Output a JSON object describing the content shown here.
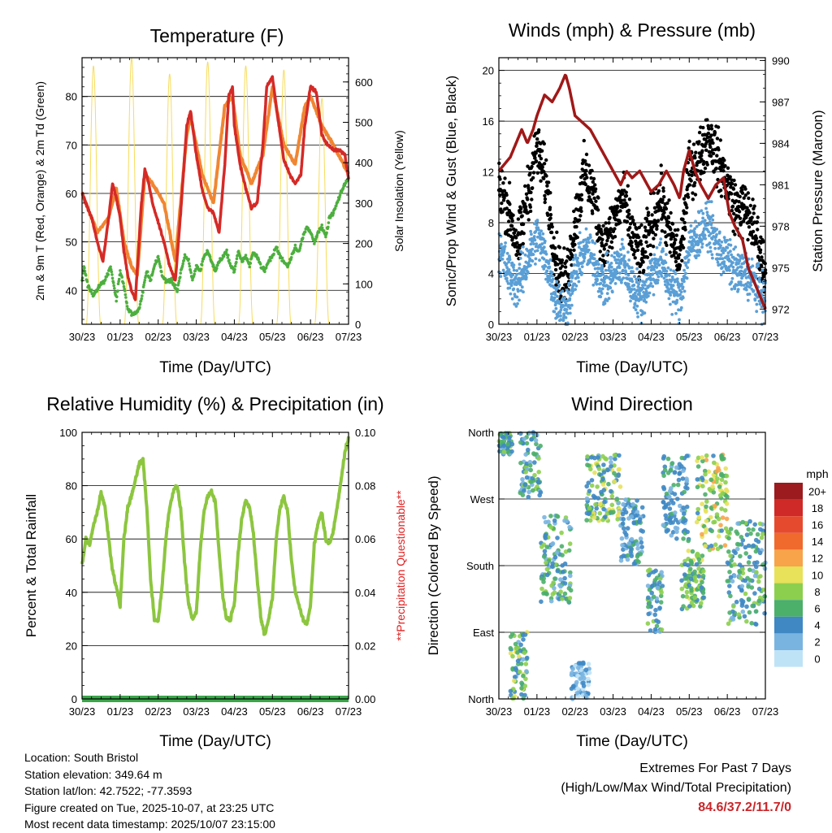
{
  "chart_data": [
    {
      "type": "line",
      "title": "Temperature (F)",
      "xlabel": "Time (Day/UTC)",
      "ylabel": "2m & 9m T (Red, Orange) & 2m Td (Green)",
      "y2label": "Solar Insolation (Yellow)",
      "x_ticks": [
        "30/23",
        "01/23",
        "02/23",
        "03/23",
        "04/23",
        "05/23",
        "06/23",
        "07/23"
      ],
      "xlim": [
        0,
        7
      ],
      "ylim": [
        33,
        88
      ],
      "y_ticks": [
        40,
        50,
        60,
        70,
        80
      ],
      "y2lim": [
        0,
        660
      ],
      "y2_ticks": [
        0,
        100,
        200,
        300,
        400,
        500,
        600
      ],
      "colors": {
        "t2m": "#d42a27",
        "t9m": "#f08632",
        "td": "#4caf3e",
        "solar": "#f7dc5a"
      },
      "series": [
        {
          "name": "2m Temperature",
          "axis": "left",
          "x": [
            0,
            0.1,
            0.25,
            0.4,
            0.55,
            0.7,
            0.8,
            0.9,
            1.0,
            1.1,
            1.2,
            1.3,
            1.4,
            1.55,
            1.65,
            1.75,
            1.85,
            2.0,
            2.15,
            2.3,
            2.45,
            2.6,
            2.75,
            2.85,
            3.0,
            3.15,
            3.3,
            3.45,
            3.6,
            3.75,
            3.85,
            3.95,
            4.0,
            4.15,
            4.3,
            4.45,
            4.6,
            4.75,
            4.85,
            5.0,
            5.15,
            5.3,
            5.45,
            5.6,
            5.75,
            5.85,
            6.0,
            6.15,
            6.3,
            6.45,
            6.6,
            6.75,
            6.9,
            7.0
          ],
          "values": [
            60,
            58,
            55,
            50,
            46,
            55,
            62,
            59,
            55,
            48,
            43,
            40,
            38,
            57,
            65,
            62,
            58,
            54,
            50,
            45,
            42,
            57,
            74,
            77,
            68,
            61,
            57,
            56,
            52,
            66,
            80,
            82,
            74,
            66,
            61,
            57,
            58,
            70,
            82,
            84,
            75,
            67,
            64,
            62,
            64,
            74,
            82,
            81,
            72,
            70,
            69,
            69,
            68,
            63
          ]
        },
        {
          "name": "9m Temperature",
          "axis": "left",
          "x": [
            0,
            0.4,
            0.7,
            0.9,
            1.1,
            1.3,
            1.45,
            1.65,
            1.85,
            2.15,
            2.45,
            2.75,
            2.85,
            3.15,
            3.45,
            3.75,
            3.95,
            4.15,
            4.45,
            4.75,
            5.0,
            5.3,
            5.6,
            5.85,
            6.0,
            6.3,
            6.6,
            7.0
          ],
          "values": [
            60,
            52,
            55,
            61,
            50,
            45,
            43,
            64,
            62,
            58,
            46,
            72,
            76,
            64,
            58,
            78,
            80,
            68,
            62,
            68,
            82,
            70,
            66,
            78,
            80,
            74,
            70,
            64
          ]
        },
        {
          "name": "2m Dewpoint",
          "axis": "left",
          "x": [
            0,
            0.05,
            0.15,
            0.3,
            0.45,
            0.6,
            0.75,
            0.9,
            1.0,
            1.1,
            1.2,
            1.35,
            1.5,
            1.6,
            1.7,
            1.8,
            1.9,
            2.0,
            2.1,
            2.2,
            2.35,
            2.5,
            2.6,
            2.7,
            2.8,
            2.9,
            3.0,
            3.1,
            3.2,
            3.3,
            3.4,
            3.5,
            3.6,
            3.7,
            3.8,
            3.9,
            4.0,
            4.1,
            4.2,
            4.3,
            4.4,
            4.5,
            4.6,
            4.7,
            4.8,
            4.9,
            5.0,
            5.1,
            5.2,
            5.3,
            5.4,
            5.5,
            5.6,
            5.7,
            5.8,
            5.9,
            6.0,
            6.1,
            6.2,
            6.3,
            6.4,
            6.5,
            6.6,
            6.7,
            6.8,
            6.9,
            7.0
          ],
          "values": [
            42,
            45,
            41,
            39,
            41,
            42,
            45,
            38,
            44,
            41,
            36,
            35,
            36,
            40,
            44,
            42,
            45,
            47,
            43,
            42,
            42,
            40,
            44,
            47,
            46,
            42,
            45,
            44,
            47,
            48,
            46,
            44,
            46,
            47,
            48,
            45,
            44,
            48,
            46,
            47,
            45,
            48,
            47,
            45,
            44,
            46,
            47,
            49,
            47,
            46,
            45,
            47,
            49,
            48,
            51,
            53,
            52,
            50,
            52,
            53,
            51,
            55,
            56,
            58,
            60,
            62,
            63
          ]
        },
        {
          "name": "Solar Insolation",
          "axis": "right",
          "peaks_day": [
            0.3,
            1.3,
            2.3,
            3.3,
            4.3,
            5.3,
            6.3
          ],
          "peak_values": [
            640,
            660,
            620,
            650,
            640,
            630,
            560
          ]
        }
      ]
    },
    {
      "type": "scatter",
      "title": "Winds (mph) & Pressure (mb)",
      "xlabel": "Time (Day/UTC)",
      "ylabel": "Sonic/Prop Wind & Gust (Blue, Black)",
      "y2label": "Station Pressure (Maroon)",
      "x_ticks": [
        "30/23",
        "01/23",
        "02/23",
        "03/23",
        "04/23",
        "05/23",
        "06/23",
        "07/23"
      ],
      "xlim": [
        0,
        7
      ],
      "ylim": [
        0,
        21
      ],
      "y_ticks": [
        0,
        4,
        8,
        12,
        16,
        20
      ],
      "y2lim": [
        970.9,
        990.2
      ],
      "y2_ticks": [
        972,
        975,
        978,
        981,
        984,
        987,
        990
      ],
      "colors": {
        "wind": "#5a9fd6",
        "gust": "#000000",
        "pressure": "#a01818"
      },
      "series": [
        {
          "name": "Sonic/Prop Wind",
          "axis": "left",
          "x": [
            0,
            0.25,
            0.5,
            0.75,
            1.0,
            1.25,
            1.5,
            1.75,
            2.0,
            2.25,
            2.5,
            2.75,
            3.0,
            3.25,
            3.5,
            3.75,
            4.0,
            4.25,
            4.5,
            4.75,
            5.0,
            5.25,
            5.5,
            5.75,
            6.0,
            6.25,
            6.5,
            6.75,
            7.0
          ],
          "values": [
            6,
            4,
            3,
            5,
            7,
            5,
            2,
            1,
            4,
            6,
            5,
            3,
            4,
            5,
            3,
            2,
            4,
            5,
            3,
            2,
            6,
            7,
            8,
            6,
            5,
            4,
            4,
            3,
            2
          ]
        },
        {
          "name": "Gust",
          "axis": "left",
          "x": [
            0,
            0.25,
            0.5,
            0.75,
            1.0,
            1.25,
            1.5,
            1.75,
            2.0,
            2.25,
            2.5,
            2.75,
            3.0,
            3.25,
            3.5,
            3.75,
            4.0,
            4.25,
            4.5,
            4.75,
            5.0,
            5.25,
            5.5,
            5.75,
            6.0,
            6.25,
            6.5,
            6.75,
            7.0
          ],
          "values": [
            11,
            9,
            6,
            10,
            14,
            11,
            5,
            3,
            8,
            12,
            10,
            6,
            8,
            10,
            7,
            5,
            8,
            10,
            7,
            5,
            12,
            13,
            15,
            13,
            11,
            9,
            9,
            7,
            4
          ]
        },
        {
          "name": "Station Pressure",
          "axis": "right",
          "x": [
            0,
            0.15,
            0.3,
            0.45,
            0.6,
            0.75,
            0.9,
            1.0,
            1.2,
            1.4,
            1.6,
            1.75,
            1.85,
            2.0,
            2.2,
            2.4,
            2.6,
            2.8,
            3.0,
            3.2,
            3.35,
            3.5,
            3.7,
            3.9,
            4.0,
            4.2,
            4.4,
            4.6,
            4.75,
            4.85,
            5.0,
            5.15,
            5.3,
            5.5,
            5.7,
            5.9,
            6.05,
            6.2,
            6.4,
            6.55,
            6.7,
            6.85,
            7.0
          ],
          "values": [
            982,
            982.5,
            983,
            984,
            985,
            984,
            985,
            986,
            987.5,
            987,
            988,
            989,
            988,
            986,
            985.5,
            985,
            984,
            983,
            982,
            981,
            982,
            981.5,
            982,
            981,
            980.5,
            981,
            982,
            981,
            980,
            982,
            983.5,
            982,
            981,
            980,
            981,
            981.5,
            979,
            978,
            977,
            975,
            974,
            973,
            972
          ]
        }
      ]
    },
    {
      "type": "line",
      "title": "Relative Humidity (%) & Precipitation (in)",
      "xlabel": "Time (Day/UTC)",
      "ylabel": "Percent & Total Rainfall",
      "y2label": "**Precipitation Questionable**",
      "x_ticks": [
        "30/23",
        "01/23",
        "02/23",
        "03/23",
        "04/23",
        "05/23",
        "06/23",
        "07/23"
      ],
      "xlim": [
        0,
        7
      ],
      "ylim": [
        0,
        100
      ],
      "y_ticks": [
        0,
        20,
        40,
        60,
        80,
        100
      ],
      "y2lim": [
        0,
        0.1
      ],
      "y2_ticks": [
        "0.00",
        "0.02",
        "0.04",
        "0.06",
        "0.08",
        "0.10"
      ],
      "colors": {
        "rh": "#8cc63f",
        "precip": "#3aa64a",
        "note": "#e02020"
      },
      "series": [
        {
          "name": "Relative Humidity",
          "axis": "left",
          "x": [
            0,
            0.1,
            0.2,
            0.3,
            0.4,
            0.5,
            0.6,
            0.7,
            0.8,
            0.9,
            1.0,
            1.1,
            1.2,
            1.3,
            1.4,
            1.5,
            1.6,
            1.7,
            1.8,
            1.9,
            2.0,
            2.1,
            2.2,
            2.3,
            2.4,
            2.5,
            2.6,
            2.7,
            2.8,
            2.9,
            3.0,
            3.1,
            3.2,
            3.3,
            3.4,
            3.5,
            3.6,
            3.7,
            3.8,
            3.9,
            4.0,
            4.1,
            4.2,
            4.3,
            4.4,
            4.5,
            4.6,
            4.7,
            4.8,
            4.9,
            5.0,
            5.1,
            5.2,
            5.3,
            5.4,
            5.5,
            5.6,
            5.7,
            5.8,
            5.9,
            6.0,
            6.1,
            6.2,
            6.3,
            6.4,
            6.5,
            6.6,
            6.7,
            6.8,
            6.9,
            7.0
          ],
          "values": [
            50,
            60,
            58,
            65,
            70,
            78,
            72,
            60,
            48,
            42,
            35,
            60,
            72,
            76,
            82,
            88,
            90,
            72,
            45,
            30,
            29,
            42,
            60,
            72,
            78,
            80,
            70,
            50,
            35,
            30,
            32,
            55,
            70,
            76,
            78,
            74,
            55,
            38,
            30,
            30,
            36,
            55,
            68,
            74,
            72,
            62,
            45,
            30,
            24,
            30,
            38,
            60,
            72,
            76,
            70,
            52,
            40,
            35,
            30,
            28,
            35,
            58,
            66,
            70,
            60,
            58,
            63,
            72,
            82,
            92,
            98
          ]
        },
        {
          "name": "Total Precipitation",
          "axis": "right",
          "x": [
            0,
            7
          ],
          "values": [
            0,
            0
          ]
        }
      ]
    },
    {
      "type": "scatter",
      "title": "Wind Direction",
      "xlabel": "Time (Day/UTC)",
      "ylabel": "Direction (Colored By Speed)",
      "x_ticks": [
        "30/23",
        "01/23",
        "02/23",
        "03/23",
        "04/23",
        "05/23",
        "06/23",
        "07/23"
      ],
      "xlim": [
        0,
        7
      ],
      "ylim": [
        0,
        360
      ],
      "y_ticks": [
        "North",
        "East",
        "South",
        "West",
        "North"
      ],
      "legend_title": "mph",
      "legend_labels": [
        "20+",
        "18",
        "16",
        "14",
        "12",
        "10",
        "8",
        "6",
        "4",
        "2",
        "0"
      ],
      "legend_colors": [
        "#9b1b1e",
        "#cf2a27",
        "#e64a2e",
        "#f06a2d",
        "#f7a44a",
        "#e8e15a",
        "#8ccf4e",
        "#4caf6a",
        "#3f88c4",
        "#79b4e0",
        "#bfe3f6"
      ],
      "clusters": [
        {
          "x": [
            0.0,
            0.35
          ],
          "dir": [
            330,
            360
          ],
          "speed": [
            2,
            8
          ]
        },
        {
          "x": [
            0.3,
            0.75
          ],
          "dir": [
            0,
            90
          ],
          "speed": [
            2,
            10
          ]
        },
        {
          "x": [
            0.55,
            1.1
          ],
          "dir": [
            270,
            360
          ],
          "speed": [
            2,
            8
          ]
        },
        {
          "x": [
            1.1,
            1.9
          ],
          "dir": [
            130,
            250
          ],
          "speed": [
            2,
            8
          ]
        },
        {
          "x": [
            1.9,
            2.4
          ],
          "dir": [
            0,
            50
          ],
          "speed": [
            0,
            4
          ]
        },
        {
          "x": [
            2.3,
            3.2
          ],
          "dir": [
            240,
            330
          ],
          "speed": [
            2,
            10
          ]
        },
        {
          "x": [
            3.2,
            3.8
          ],
          "dir": [
            180,
            270
          ],
          "speed": [
            2,
            6
          ]
        },
        {
          "x": [
            3.9,
            4.3
          ],
          "dir": [
            90,
            180
          ],
          "speed": [
            2,
            8
          ]
        },
        {
          "x": [
            4.3,
            5.0
          ],
          "dir": [
            210,
            330
          ],
          "speed": [
            2,
            6
          ]
        },
        {
          "x": [
            4.8,
            5.4
          ],
          "dir": [
            120,
            200
          ],
          "speed": [
            4,
            10
          ]
        },
        {
          "x": [
            5.2,
            6.0
          ],
          "dir": [
            200,
            330
          ],
          "speed": [
            4,
            12
          ]
        },
        {
          "x": [
            6.0,
            7.0
          ],
          "dir": [
            100,
            240
          ],
          "speed": [
            2,
            8
          ]
        }
      ]
    }
  ],
  "station_info": {
    "location": "Location: South Bristol",
    "elevation": "Station elevation: 349.64 m",
    "latlon": "Station lat/lon: 42.7522; -77.3593",
    "created": "Figure created on Tue, 2025-10-07, at 23:25 UTC",
    "latest": "Most recent data timestamp: 2025/10/07 23:15:00"
  },
  "extremes": {
    "heading": "Extremes For Past 7 Days",
    "subheading": "(High/Low/Max Wind/Total Precipitation)",
    "values": "84.6/37.2/11.7/0"
  }
}
